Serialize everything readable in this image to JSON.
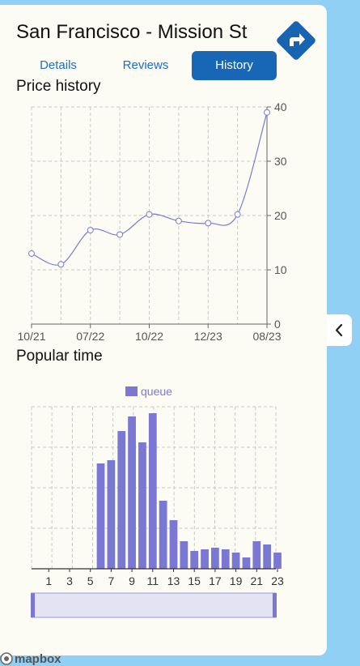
{
  "place": {
    "title": "San Francisco - Mission St"
  },
  "tabs": [
    {
      "label": "Details",
      "active": false
    },
    {
      "label": "Reviews",
      "active": false
    },
    {
      "label": "History",
      "active": true
    }
  ],
  "sections": {
    "price_history": "Price history",
    "popular_time": "Popular time"
  },
  "icons": {
    "directions": "directions-arrow-icon",
    "collapse": "chevron-left-icon",
    "logo": "mapbox-logo"
  },
  "colors": {
    "accent": "#1767b6",
    "directions": "#1764b3",
    "series": "#7b78d4",
    "background": "#8fd0f4",
    "panel": "#fcfcf5"
  },
  "attribution": "mapbox",
  "chart_data": [
    {
      "type": "line",
      "title": "Price history",
      "x_labels": [
        "10/21",
        "07/22",
        "10/22",
        "12/23",
        "08/23"
      ],
      "x": [
        "10/21",
        "",
        "07/22",
        "",
        "10/22",
        "",
        "12/23",
        "",
        "08/23"
      ],
      "series": [
        {
          "values": [
            13,
            11,
            17.3,
            16.5,
            20.2,
            19,
            18.6,
            20.2,
            39
          ]
        }
      ],
      "ylim": [
        0,
        40
      ],
      "y_ticks": [
        0,
        10,
        20,
        30,
        40
      ],
      "y_axis_side": "right",
      "grid": true,
      "smooth": true
    },
    {
      "type": "bar",
      "title": "Popular time",
      "categories": [
        "0",
        "1",
        "2",
        "3",
        "4",
        "5",
        "6",
        "7",
        "8",
        "9",
        "10",
        "11",
        "12",
        "13",
        "14",
        "15",
        "16",
        "17",
        "18",
        "19",
        "20",
        "21",
        "22",
        "23"
      ],
      "tick_labels": [
        "1",
        "3",
        "5",
        "7",
        "9",
        "11",
        "13",
        "15",
        "17",
        "19",
        "21",
        "23"
      ],
      "series": [
        {
          "name": "queue",
          "values": [
            0,
            0,
            0,
            0,
            0,
            0,
            65,
            67,
            85,
            94,
            78,
            96,
            42,
            30,
            17,
            11,
            12,
            13,
            12,
            10,
            7,
            17,
            15,
            10
          ]
        }
      ],
      "ylim": [
        0,
        100
      ],
      "legend": "top-center",
      "grid": true,
      "zoom_slider_range": [
        0,
        1
      ]
    }
  ]
}
